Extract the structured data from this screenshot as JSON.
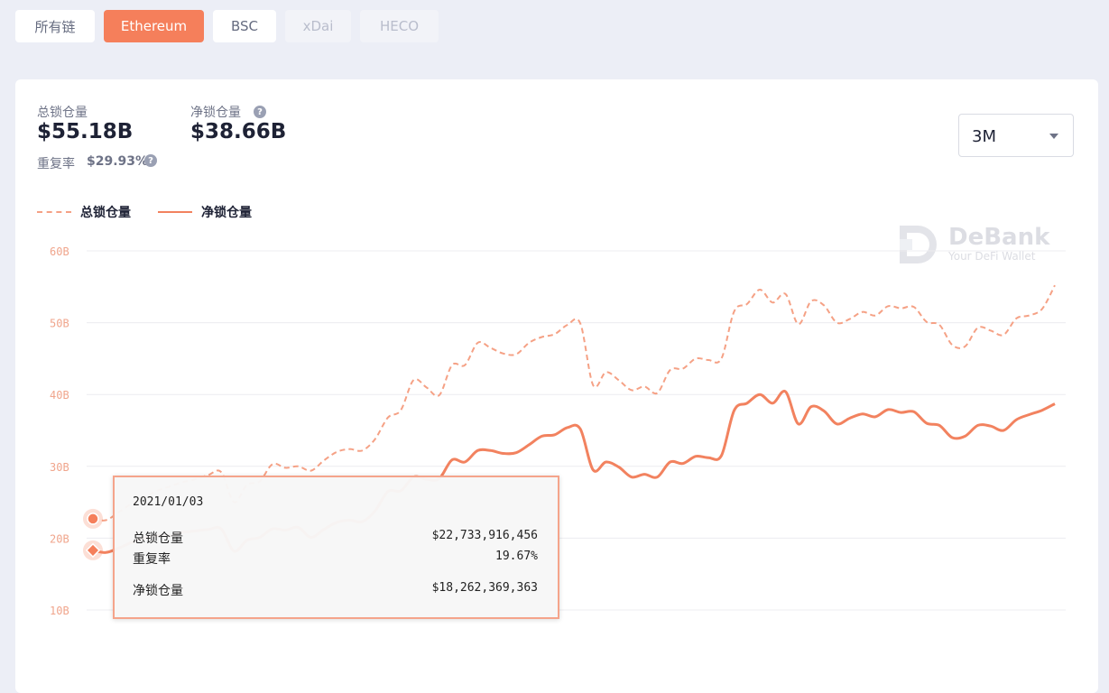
{
  "chain_tabs": [
    {
      "label": "所有链",
      "state": "normal"
    },
    {
      "label": "Ethereum",
      "state": "active"
    },
    {
      "label": "BSC",
      "state": "normal"
    },
    {
      "label": "xDai",
      "state": "disabled"
    },
    {
      "label": "HECO",
      "state": "disabled"
    }
  ],
  "stats": {
    "total_label": "总锁仓量",
    "total_value": "$55.18B",
    "net_label": "净锁仓量",
    "net_value": "$38.66B",
    "repeat_label": "重复率",
    "repeat_value": "$29.93%",
    "help_icon": "?"
  },
  "range_select": {
    "value": "3M"
  },
  "watermark": {
    "title": "DeBank",
    "subtitle": "Your DeFi Wallet"
  },
  "colors": {
    "accent": "#f57f5b",
    "net_line": "#f2825f",
    "total_line": "#f5a185",
    "grid": "#ececf0"
  },
  "chart_data": {
    "type": "line",
    "y_ticks": [
      "60B",
      "50B",
      "40B",
      "30B",
      "20B",
      "10B"
    ],
    "y_tick_values": [
      60,
      50,
      40,
      30,
      20,
      10
    ],
    "ylim": [
      10,
      60
    ],
    "y_unit": "B",
    "legend": [
      {
        "name": "总锁仓量",
        "style": "dashed"
      },
      {
        "name": "净锁仓量",
        "style": "solid"
      }
    ],
    "legend_position": "top-left",
    "grid": true,
    "series": [
      {
        "name": "总锁仓量",
        "style": "dashed",
        "values": [
          22.7,
          22.5,
          23.6,
          24.8,
          25.7,
          26.6,
          27.2,
          27.8,
          28.2,
          28.8,
          29.2,
          25.0,
          27.4,
          27.9,
          30.3,
          29.8,
          30.0,
          29.4,
          30.8,
          32.0,
          32.4,
          32.2,
          33.8,
          36.8,
          37.8,
          42.0,
          41.0,
          39.9,
          44.1,
          44.1,
          47.2,
          46.5,
          45.7,
          45.6,
          47.2,
          48.0,
          48.4,
          49.7,
          49.9,
          41.3,
          43.1,
          42.0,
          40.6,
          41.1,
          40.2,
          43.4,
          43.6,
          45.0,
          44.8,
          45.0,
          51.6,
          52.6,
          54.6,
          52.8,
          54.0,
          49.8,
          53.0,
          52.4,
          50.0,
          50.5,
          51.5,
          51.0,
          52.3,
          52.0,
          52.2,
          50.1,
          49.7,
          46.9,
          46.7,
          49.3,
          48.9,
          48.3,
          50.6,
          51.0,
          51.9,
          55.2
        ]
      },
      {
        "name": "净锁仓量",
        "style": "solid",
        "values": [
          18.3,
          18.0,
          18.6,
          19.4,
          20.0,
          20.4,
          20.3,
          20.8,
          21.0,
          21.2,
          21.3,
          18.2,
          19.7,
          20.1,
          21.3,
          21.1,
          21.5,
          20.1,
          21.2,
          22.2,
          22.5,
          22.3,
          23.8,
          26.5,
          26.6,
          28.5,
          28.2,
          28.3,
          30.9,
          30.6,
          32.2,
          32.2,
          31.8,
          31.9,
          33.0,
          34.2,
          34.4,
          35.4,
          35.2,
          29.5,
          30.6,
          29.9,
          28.5,
          28.9,
          28.5,
          30.6,
          30.4,
          31.4,
          31.2,
          31.5,
          37.8,
          38.8,
          40.0,
          38.8,
          40.4,
          35.9,
          38.3,
          37.7,
          35.9,
          36.7,
          37.3,
          36.9,
          37.9,
          37.5,
          37.6,
          36.0,
          35.7,
          34.0,
          34.2,
          35.7,
          35.6,
          35.0,
          36.5,
          37.2,
          37.8,
          38.7
        ]
      }
    ]
  },
  "tooltip": {
    "date": "2021/01/03",
    "rows": [
      {
        "label": "总锁仓量",
        "value": "$22,733,916,456"
      },
      {
        "label": "重复率",
        "value": "19.67%"
      },
      {
        "label": "净锁仓量",
        "value": "$18,262,369,363"
      }
    ]
  }
}
